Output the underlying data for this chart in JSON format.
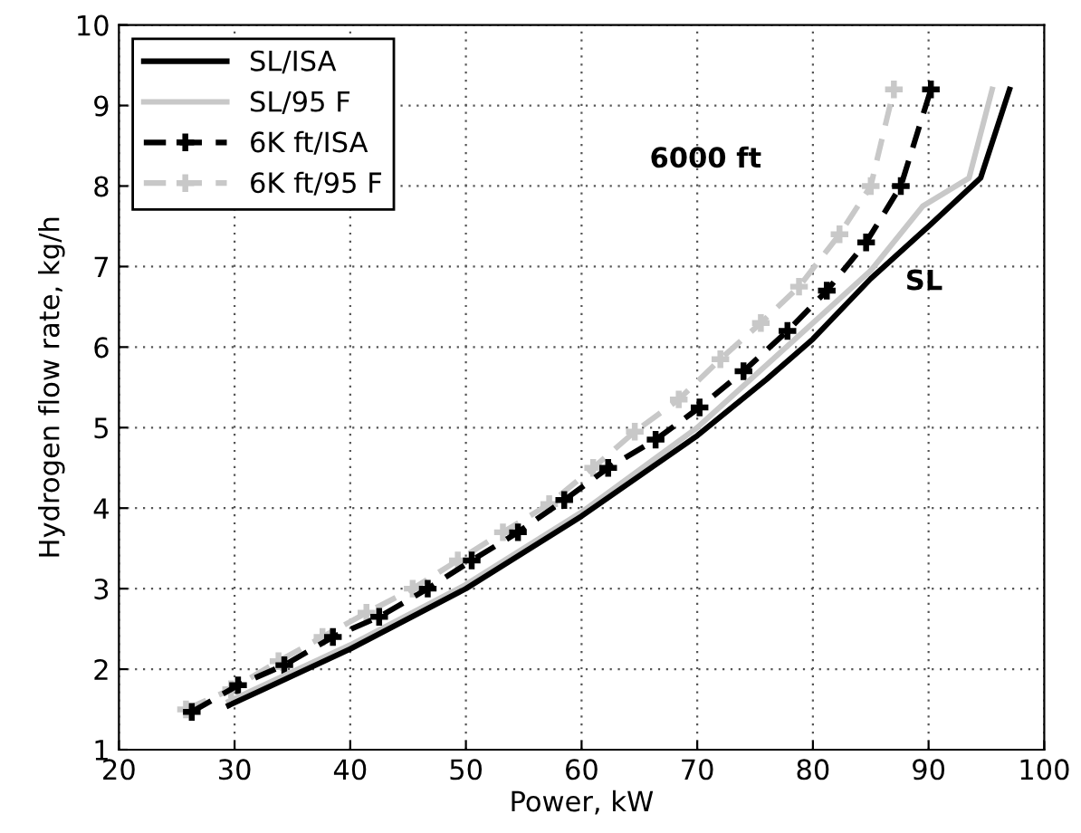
{
  "chart_data": {
    "type": "line",
    "xlabel": "Power, kW",
    "ylabel": "Hydrogen flow rate, kg/h",
    "xlim": [
      20,
      100
    ],
    "ylim": [
      1,
      10
    ],
    "xticks": [
      20,
      30,
      40,
      50,
      60,
      70,
      80,
      90,
      100
    ],
    "yticks": [
      1,
      2,
      3,
      4,
      5,
      6,
      7,
      8,
      9,
      10
    ],
    "grid": true,
    "legend": "top left",
    "annotations": [
      "6000 ft",
      "SL"
    ],
    "series": [
      {
        "name": "SL/ISA",
        "color": "#000000",
        "line_style": "solid",
        "marker": "none",
        "x": [
          29.5,
          40,
          50,
          60,
          70,
          76,
          80,
          85,
          90,
          94.5,
          97
        ],
        "values": [
          1.55,
          2.25,
          3.0,
          3.9,
          4.9,
          5.6,
          6.1,
          6.85,
          7.5,
          8.1,
          9.2
        ]
      },
      {
        "name": "SL/95 F",
        "color": "#c8c8c8",
        "line_style": "solid",
        "marker": "none",
        "x": [
          29.5,
          40,
          50,
          60,
          70,
          80,
          85,
          89.5,
          93.5,
          95.5
        ],
        "values": [
          1.6,
          2.3,
          3.05,
          3.95,
          5.0,
          6.3,
          6.95,
          7.75,
          8.1,
          9.2
        ]
      },
      {
        "name": "6K ft/ISA",
        "color": "#000000",
        "line_style": "dashed",
        "marker": "cross",
        "x": [
          26.3,
          30.3,
          34.3,
          38.5,
          42.5,
          46.7,
          50.5,
          54.5,
          58.5,
          62.3,
          66.4,
          70.2,
          74,
          77.8,
          81.2,
          84.6,
          87.6,
          90.2
        ],
        "values": [
          1.47,
          1.8,
          2.05,
          2.4,
          2.65,
          3.0,
          3.35,
          3.7,
          4.1,
          4.5,
          4.85,
          5.25,
          5.7,
          6.2,
          6.7,
          7.3,
          8.0,
          9.2
        ]
      },
      {
        "name": "6K ft/95 F",
        "color": "#c8c8c8",
        "line_style": "dashed",
        "marker": "cross",
        "x": [
          25.8,
          29.7,
          33.8,
          37.6,
          41.4,
          45.4,
          49.3,
          53.2,
          57.2,
          61,
          64.6,
          68.4,
          72,
          75.5,
          78.8,
          82.3,
          85,
          87
        ],
        "values": [
          1.5,
          1.75,
          2.1,
          2.4,
          2.7,
          3.0,
          3.35,
          3.7,
          4.05,
          4.5,
          4.95,
          5.35,
          5.85,
          6.3,
          6.75,
          7.4,
          8.0,
          9.2
        ]
      }
    ]
  }
}
